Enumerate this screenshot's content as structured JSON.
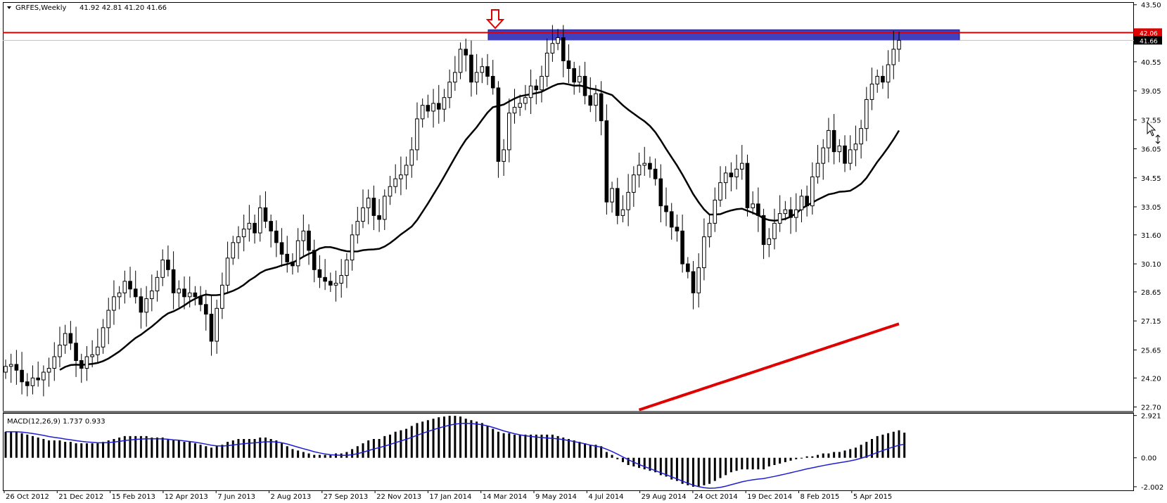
{
  "header": {
    "symbol": "GRFES,Weekly",
    "ohlc": "41.92 42.81 41.20 41.66"
  },
  "macd_header": "MACD(12,26,9) 1.737 0.933",
  "colors": {
    "price_line": "#e00000",
    "band_fill": "#4040c0",
    "ma_fast": "#000000",
    "ma_slow": "#e00000",
    "macd_signal": "#1f1fd0",
    "arrow": "#e00000"
  },
  "icons": {
    "down_arrow": "down-arrow-icon",
    "cursor": "cursor-icon"
  },
  "chart_data": [
    {
      "type": "candlestick",
      "ylim": [
        22.5,
        43.6
      ],
      "y_ticks": [
        "43.50",
        "42.06",
        "41.66",
        "40.55",
        "39.05",
        "37.55",
        "36.05",
        "34.55",
        "33.05",
        "31.60",
        "30.10",
        "28.65",
        "27.15",
        "25.65",
        "24.20",
        "22.70"
      ],
      "price_labels": {
        "last_red": "42.06",
        "current": "41.66"
      },
      "x_ticks": [
        "26 Oct 2012",
        "21 Dec 2012",
        "15 Feb 2013",
        "12 Apr 2013",
        "7 Jun 2013",
        "2 Aug 2013",
        "27 Sep 2013",
        "22 Nov 2013",
        "17 Jan 2014",
        "14 Mar 2014",
        "9 May 2014",
        "4 Jul 2014",
        "29 Aug 2014",
        "24 Oct 2014",
        "19 Dec 2014",
        "8 Feb 2015",
        "5 Apr 2015"
      ],
      "horizontal_line": 42.06,
      "resistance_band": [
        41.66,
        42.06
      ],
      "close": [
        24.8,
        24.9,
        24.6,
        24.0,
        23.8,
        24.2,
        24.1,
        24.5,
        24.7,
        25.3,
        25.9,
        26.5,
        26.0,
        25.1,
        24.7,
        25.3,
        25.4,
        25.8,
        26.8,
        27.7,
        28.4,
        28.6,
        29.2,
        28.8,
        28.4,
        27.6,
        28.3,
        28.7,
        29.4,
        30.3,
        29.8,
        28.6,
        28.8,
        28.4,
        28.6,
        28.4,
        28.0,
        27.5,
        26.1,
        27.8,
        29.0,
        30.4,
        31.2,
        31.5,
        31.9,
        32.2,
        31.7,
        33.0,
        32.3,
        31.8,
        31.2,
        30.6,
        30.2,
        30.0,
        31.3,
        31.8,
        30.8,
        29.8,
        29.4,
        29.2,
        29.0,
        29.1,
        29.5,
        30.3,
        31.6,
        32.3,
        33.0,
        33.5,
        32.6,
        32.4,
        33.6,
        34.1,
        34.5,
        34.7,
        35.2,
        36.0,
        37.6,
        38.3,
        38.0,
        38.4,
        38.1,
        38.7,
        39.5,
        40.0,
        41.2,
        40.9,
        39.5,
        40.0,
        40.3,
        39.8,
        39.2,
        35.4,
        36.0,
        37.9,
        38.2,
        38.4,
        38.7,
        39.3,
        39.1,
        39.8,
        41.0,
        41.5,
        41.8,
        40.6,
        40.2,
        39.5,
        39.8,
        38.8,
        38.3,
        38.9,
        37.5,
        33.3,
        34.0,
        32.6,
        32.9,
        33.8,
        34.7,
        35.2,
        35.3,
        35.0,
        34.5,
        33.1,
        32.8,
        32.0,
        31.8,
        30.1,
        29.7,
        28.6,
        29.9,
        31.5,
        32.2,
        33.4,
        34.3,
        34.8,
        34.6,
        35.0,
        35.3,
        33.0,
        33.2,
        32.6,
        31.1,
        31.4,
        32.2,
        32.7,
        32.9,
        32.5,
        32.9,
        33.6,
        33.1,
        34.6,
        35.3,
        36.1,
        37.0,
        35.9,
        36.2,
        35.3,
        36.0,
        36.3,
        37.1,
        38.6,
        39.4,
        39.8,
        39.5,
        40.4,
        41.2,
        41.66
      ],
      "ma_fast_last": 35.1,
      "ma_slow_last": 27.0
    },
    {
      "type": "macd",
      "ylim": [
        -2.25,
        3.05
      ],
      "y_ticks": [
        "2.921",
        "0.00",
        "-2.002"
      ],
      "histogram": [
        1.8,
        1.8,
        1.8,
        1.7,
        1.6,
        1.5,
        1.4,
        1.3,
        1.2,
        1.2,
        1.2,
        1.1,
        1.1,
        1.0,
        1.0,
        1.0,
        1.0,
        1.0,
        1.1,
        1.2,
        1.3,
        1.4,
        1.5,
        1.5,
        1.5,
        1.5,
        1.5,
        1.4,
        1.4,
        1.4,
        1.3,
        1.2,
        1.2,
        1.1,
        1.1,
        1.0,
        0.9,
        0.8,
        0.7,
        0.8,
        0.9,
        1.1,
        1.2,
        1.3,
        1.3,
        1.3,
        1.3,
        1.4,
        1.4,
        1.3,
        1.2,
        1.0,
        0.8,
        0.6,
        0.5,
        0.4,
        0.3,
        0.2,
        0.2,
        0.2,
        0.2,
        0.3,
        0.3,
        0.4,
        0.6,
        0.8,
        1.0,
        1.2,
        1.3,
        1.3,
        1.5,
        1.6,
        1.8,
        1.9,
        2.0,
        2.2,
        2.4,
        2.5,
        2.6,
        2.7,
        2.8,
        2.85,
        2.9,
        2.9,
        2.85,
        2.7,
        2.6,
        2.5,
        2.4,
        2.2,
        2.0,
        1.8,
        1.7,
        1.7,
        1.6,
        1.6,
        1.6,
        1.6,
        1.6,
        1.6,
        1.6,
        1.6,
        1.5,
        1.4,
        1.3,
        1.2,
        1.1,
        1.0,
        0.9,
        0.9,
        0.8,
        0.4,
        0.2,
        -0.1,
        -0.3,
        -0.5,
        -0.6,
        -0.7,
        -0.8,
        -0.9,
        -1.0,
        -1.2,
        -1.3,
        -1.5,
        -1.6,
        -1.8,
        -1.9,
        -2.0,
        -2.0,
        -1.9,
        -1.8,
        -1.6,
        -1.4,
        -1.2,
        -1.0,
        -0.9,
        -0.8,
        -0.8,
        -0.8,
        -0.8,
        -0.8,
        -0.6,
        -0.5,
        -0.4,
        -0.3,
        -0.2,
        -0.1,
        0.0,
        0.1,
        0.1,
        0.2,
        0.3,
        0.3,
        0.4,
        0.4,
        0.5,
        0.6,
        0.7,
        0.9,
        1.1,
        1.3,
        1.5,
        1.6,
        1.7,
        1.8,
        1.9,
        1.737
      ],
      "signal_last": 0.933
    }
  ]
}
